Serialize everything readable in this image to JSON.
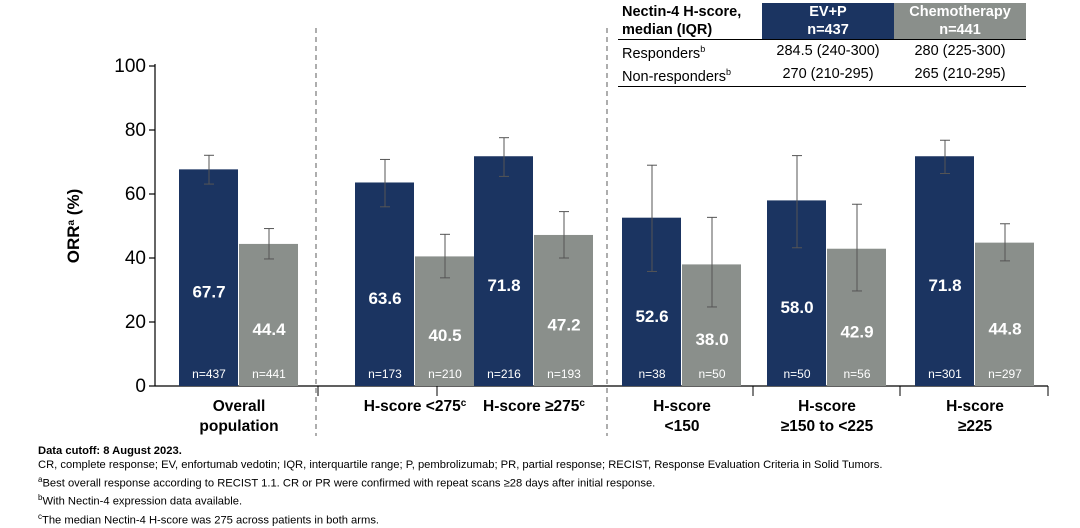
{
  "colors": {
    "ev": "#1b3461",
    "chemo": "#8a8f8b",
    "axis": "#000000",
    "divider": "#777777",
    "errorbar": "#555555"
  },
  "chart_data": {
    "type": "bar",
    "ylabel": "ORR",
    "ylabel_sup": "a",
    "ylabel_unit": "(%)",
    "ylim": [
      0,
      100
    ],
    "yticks": [
      "0",
      "20",
      "40",
      "60",
      "80",
      "100"
    ],
    "series": [
      {
        "name": "EV+P",
        "values": [
          67.7,
          63.6,
          71.8,
          52.6,
          58.0,
          71.8
        ],
        "labels": [
          "67.7",
          "63.6",
          "71.8",
          "52.6",
          "58.0",
          "71.8"
        ],
        "ci_low": [
          63.1,
          56.0,
          65.5,
          35.8,
          43.2,
          66.4
        ],
        "ci_high": [
          72.1,
          70.8,
          77.6,
          69.0,
          72.0,
          76.8
        ],
        "n": [
          "n=437",
          "n=173",
          "n=216",
          "n=38",
          "n=50",
          "n=301"
        ]
      },
      {
        "name": "Chemotherapy",
        "values": [
          44.4,
          40.5,
          47.2,
          38.0,
          42.9,
          44.8
        ],
        "labels": [
          "44.4",
          "40.5",
          "47.2",
          "38.0",
          "42.9",
          "44.8"
        ],
        "ci_low": [
          39.7,
          33.8,
          40.0,
          24.7,
          29.7,
          39.1
        ],
        "ci_high": [
          49.2,
          47.4,
          54.5,
          52.7,
          56.8,
          50.7
        ],
        "n": [
          "n=441",
          "n=210",
          "n=193",
          "n=50",
          "n=56",
          "n=297"
        ]
      }
    ],
    "categories": [
      {
        "lines": [
          "Overall",
          "population"
        ],
        "sup": ""
      },
      {
        "lines": [
          "H-score <275"
        ],
        "sup": "c"
      },
      {
        "lines": [
          "H-score ≥275"
        ],
        "sup": "c"
      },
      {
        "lines": [
          "H-score",
          "<150"
        ],
        "sup": ""
      },
      {
        "lines": [
          "H-score",
          "≥150 to <225"
        ],
        "sup": ""
      },
      {
        "lines": [
          "H-score",
          "≥225"
        ],
        "sup": ""
      }
    ]
  },
  "table": {
    "header_label_1": "Nectin-4 H-score,",
    "header_label_2": "median (IQR)",
    "ev_name": "EV+P",
    "ev_n": "n=437",
    "chemo_name": "Chemotherapy",
    "chemo_n": "n=441",
    "rows": [
      {
        "label": "Responders",
        "sup": "b",
        "ev": "284.5 (240-300)",
        "chemo": "280 (225-300)"
      },
      {
        "label": "Non-responders",
        "sup": "b",
        "ev": "270 (210-295)",
        "chemo": "265 (210-295)"
      }
    ]
  },
  "footnotes": {
    "cutoff": "Data cutoff: 8 August 2023.",
    "abbreviations": "CR, complete response; EV, enfortumab vedotin; IQR, interquartile range; P, pembrolizumab; PR, partial response; RECIST, Response Evaluation Criteria in Solid Tumors.",
    "a_sup": "a",
    "a_text": "Best overall response according to RECIST 1.1. CR or PR were confirmed with repeat scans ≥28 days after initial response.",
    "b_sup": "b",
    "b_text": "With Nectin-4 expression data available.",
    "c_sup": "c",
    "c_text": "The median Nectin-4 H-score was 275 across patients in both arms."
  }
}
